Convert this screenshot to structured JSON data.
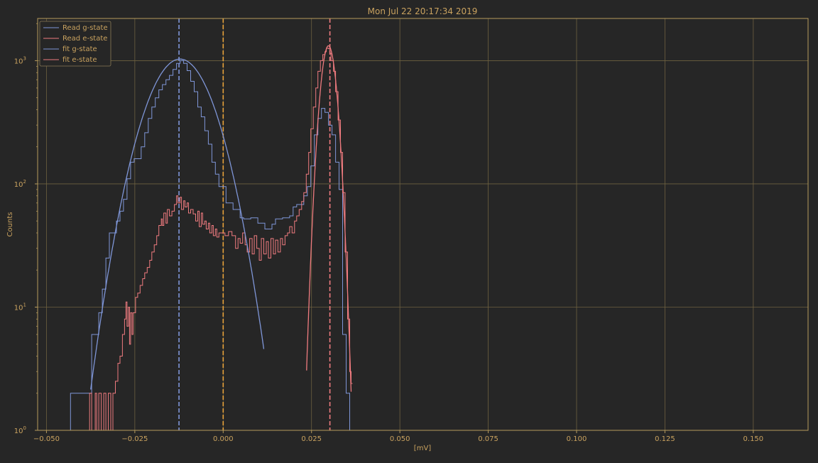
{
  "chart_data": {
    "type": "line",
    "title": "Mon Jul 22 20:17:34 2019",
    "xlabel": "[mV]",
    "ylabel": "Counts",
    "xlim": [
      -0.0525,
      0.1655
    ],
    "ylim": [
      1,
      2200
    ],
    "yscale": "log",
    "grid": true,
    "legend_position": "top-left",
    "x_ticks": [
      {
        "value": -0.05,
        "label": "−0.050"
      },
      {
        "value": -0.025,
        "label": "−0.025"
      },
      {
        "value": 0.0,
        "label": "0.000"
      },
      {
        "value": 0.025,
        "label": "0.025"
      },
      {
        "value": 0.05,
        "label": "0.050"
      },
      {
        "value": 0.075,
        "label": "0.075"
      },
      {
        "value": 0.1,
        "label": "0.100"
      },
      {
        "value": 0.125,
        "label": "0.125"
      },
      {
        "value": 0.15,
        "label": "0.150"
      }
    ],
    "y_ticks": [
      {
        "value": 1,
        "base": "10",
        "exp": "0"
      },
      {
        "value": 10,
        "base": "10",
        "exp": "1"
      },
      {
        "value": 100,
        "base": "10",
        "exp": "2"
      },
      {
        "value": 1000,
        "base": "10",
        "exp": "3"
      }
    ],
    "colors": {
      "background": "#262626",
      "axes": "#b59a5c",
      "text": "#c9a25f",
      "grid": "#6e6140",
      "g_state": "#7f96d8",
      "e_state": "#ef7b7f",
      "threshold": "#e8a23a"
    },
    "series": [
      {
        "name": "Read g-state",
        "kind": "step",
        "color": "#7f96d8",
        "points": [
          [
            -0.0432,
            2
          ],
          [
            -0.0402,
            2
          ],
          [
            -0.0382,
            2
          ],
          [
            -0.0372,
            6
          ],
          [
            -0.0352,
            9
          ],
          [
            -0.0342,
            14
          ],
          [
            -0.0332,
            25
          ],
          [
            -0.0322,
            40
          ],
          [
            -0.0302,
            50
          ],
          [
            -0.0292,
            60
          ],
          [
            -0.0282,
            75
          ],
          [
            -0.0272,
            110
          ],
          [
            -0.0262,
            150
          ],
          [
            -0.0252,
            160
          ],
          [
            -0.0232,
            200
          ],
          [
            -0.0222,
            260
          ],
          [
            -0.0212,
            340
          ],
          [
            -0.0202,
            420
          ],
          [
            -0.0192,
            500
          ],
          [
            -0.0182,
            580
          ],
          [
            -0.0172,
            640
          ],
          [
            -0.0162,
            700
          ],
          [
            -0.0152,
            760
          ],
          [
            -0.0142,
            850
          ],
          [
            -0.0132,
            950
          ],
          [
            -0.0122,
            1000
          ],
          [
            -0.0112,
            950
          ],
          [
            -0.0102,
            830
          ],
          [
            -0.0092,
            680
          ],
          [
            -0.0082,
            560
          ],
          [
            -0.0072,
            420
          ],
          [
            -0.0062,
            350
          ],
          [
            -0.0052,
            270
          ],
          [
            -0.0042,
            210
          ],
          [
            -0.0032,
            150
          ],
          [
            -0.0022,
            120
          ],
          [
            -0.0012,
            95
          ],
          [
            0.0008,
            70
          ],
          [
            0.0028,
            62
          ],
          [
            0.0048,
            53
          ],
          [
            0.0058,
            52
          ],
          [
            0.0078,
            53
          ],
          [
            0.0098,
            48
          ],
          [
            0.0118,
            43
          ],
          [
            0.0138,
            47
          ],
          [
            0.0148,
            52
          ],
          [
            0.0168,
            53
          ],
          [
            0.0188,
            55
          ],
          [
            0.0198,
            65
          ],
          [
            0.0208,
            68
          ],
          [
            0.0228,
            80
          ],
          [
            0.0238,
            95
          ],
          [
            0.0248,
            140
          ],
          [
            0.0258,
            250
          ],
          [
            0.0268,
            340
          ],
          [
            0.0278,
            410
          ],
          [
            0.0288,
            380
          ],
          [
            0.0298,
            300
          ],
          [
            0.0308,
            250
          ],
          [
            0.0318,
            150
          ],
          [
            0.0328,
            90
          ],
          [
            0.0338,
            6
          ],
          [
            0.0348,
            2
          ],
          [
            0.0358,
            1
          ]
        ]
      },
      {
        "name": "Read e-state",
        "kind": "step",
        "color": "#ef7b7f",
        "points": [
          [
            -0.0385,
            1
          ],
          [
            -0.0378,
            2
          ],
          [
            -0.0372,
            1
          ],
          [
            -0.0362,
            2
          ],
          [
            -0.0358,
            1
          ],
          [
            -0.0352,
            2
          ],
          [
            -0.0345,
            1
          ],
          [
            -0.0338,
            2
          ],
          [
            -0.0332,
            1
          ],
          [
            -0.0325,
            2
          ],
          [
            -0.0318,
            1
          ],
          [
            -0.0312,
            2
          ],
          [
            -0.0305,
            2.5
          ],
          [
            -0.0298,
            3.5
          ],
          [
            -0.0292,
            4
          ],
          [
            -0.0285,
            6
          ],
          [
            -0.0279,
            8
          ],
          [
            -0.0275,
            11
          ],
          [
            -0.0272,
            7
          ],
          [
            -0.0268,
            10
          ],
          [
            -0.0265,
            5
          ],
          [
            -0.0262,
            9
          ],
          [
            -0.0258,
            6
          ],
          [
            -0.0255,
            9
          ],
          [
            -0.0248,
            12
          ],
          [
            -0.0242,
            13
          ],
          [
            -0.0235,
            15
          ],
          [
            -0.0228,
            17
          ],
          [
            -0.0222,
            19
          ],
          [
            -0.0215,
            21
          ],
          [
            -0.0208,
            24
          ],
          [
            -0.0202,
            28
          ],
          [
            -0.0195,
            32
          ],
          [
            -0.0188,
            38
          ],
          [
            -0.0182,
            46
          ],
          [
            -0.0175,
            52
          ],
          [
            -0.0172,
            46
          ],
          [
            -0.0168,
            58
          ],
          [
            -0.0162,
            48
          ],
          [
            -0.0158,
            62
          ],
          [
            -0.0152,
            55
          ],
          [
            -0.0145,
            60
          ],
          [
            -0.0138,
            68
          ],
          [
            -0.0132,
            80
          ],
          [
            -0.0128,
            70
          ],
          [
            -0.0122,
            78
          ],
          [
            -0.0118,
            62
          ],
          [
            -0.0112,
            73
          ],
          [
            -0.0108,
            65
          ],
          [
            -0.0102,
            70
          ],
          [
            -0.0098,
            58
          ],
          [
            -0.0092,
            62
          ],
          [
            -0.0085,
            57
          ],
          [
            -0.0078,
            50
          ],
          [
            -0.0072,
            60
          ],
          [
            -0.0068,
            45
          ],
          [
            -0.0062,
            58
          ],
          [
            -0.0058,
            47
          ],
          [
            -0.0052,
            50
          ],
          [
            -0.0048,
            43
          ],
          [
            -0.0042,
            48
          ],
          [
            -0.0038,
            40
          ],
          [
            -0.0032,
            46
          ],
          [
            -0.0028,
            38
          ],
          [
            -0.0022,
            43
          ],
          [
            -0.0018,
            37
          ],
          [
            -0.0012,
            40
          ],
          [
            0.0005,
            38
          ],
          [
            0.0015,
            41
          ],
          [
            0.0025,
            38
          ],
          [
            0.0035,
            30
          ],
          [
            0.0042,
            36
          ],
          [
            0.0048,
            33
          ],
          [
            0.0055,
            40
          ],
          [
            0.0062,
            32
          ],
          [
            0.0068,
            28
          ],
          [
            0.0075,
            36
          ],
          [
            0.0082,
            27
          ],
          [
            0.0088,
            38
          ],
          [
            0.0095,
            30
          ],
          [
            0.0102,
            24
          ],
          [
            0.0108,
            36
          ],
          [
            0.0115,
            27
          ],
          [
            0.0122,
            34
          ],
          [
            0.0128,
            25
          ],
          [
            0.0135,
            36
          ],
          [
            0.0142,
            27
          ],
          [
            0.0148,
            35
          ],
          [
            0.0155,
            28
          ],
          [
            0.0162,
            36
          ],
          [
            0.0168,
            32
          ],
          [
            0.0175,
            38
          ],
          [
            0.0182,
            40
          ],
          [
            0.0188,
            45
          ],
          [
            0.0195,
            40
          ],
          [
            0.0202,
            50
          ],
          [
            0.0208,
            55
          ],
          [
            0.0215,
            62
          ],
          [
            0.0222,
            72
          ],
          [
            0.0228,
            85
          ],
          [
            0.0235,
            120
          ],
          [
            0.0242,
            180
          ],
          [
            0.0248,
            280
          ],
          [
            0.0255,
            420
          ],
          [
            0.0262,
            600
          ],
          [
            0.0268,
            820
          ],
          [
            0.0275,
            1000
          ],
          [
            0.0282,
            1120
          ],
          [
            0.0288,
            1180
          ],
          [
            0.0292,
            1260
          ],
          [
            0.0298,
            1250
          ],
          [
            0.0302,
            1150
          ],
          [
            0.0305,
            1000
          ],
          [
            0.0312,
            820
          ],
          [
            0.0318,
            560
          ],
          [
            0.0325,
            330
          ],
          [
            0.0332,
            180
          ],
          [
            0.0338,
            85
          ],
          [
            0.0345,
            28
          ],
          [
            0.0352,
            8
          ],
          [
            0.0358,
            3
          ],
          [
            0.0362,
            2.4
          ]
        ]
      },
      {
        "name": "fit g-state",
        "kind": "fit",
        "color": "#7f96d8",
        "peak_x": -0.0122,
        "peak_y": 1030,
        "sigma": 0.0072,
        "x_range": [
          -0.0375,
          0.0115
        ]
      },
      {
        "name": "fit e-state",
        "kind": "fit",
        "color": "#ef7b7f",
        "peak_x": 0.0298,
        "peak_y": 1320,
        "sigma": 0.00178,
        "x_range": [
          0.0236,
          0.0362
        ]
      }
    ],
    "vlines": [
      {
        "x": -0.0125,
        "color": "#7f96d8"
      },
      {
        "x": 0.0,
        "color": "#e8a23a"
      },
      {
        "x": 0.0302,
        "color": "#ef7b7f"
      }
    ]
  }
}
